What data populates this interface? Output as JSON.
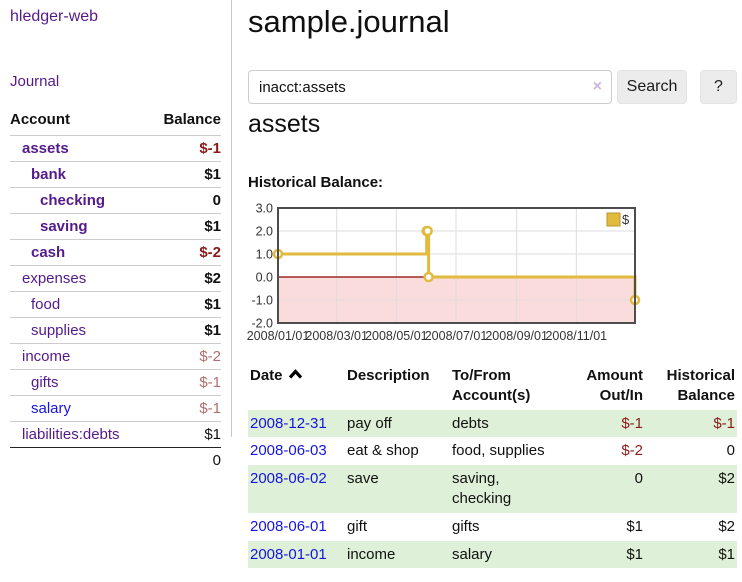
{
  "app": {
    "brand": "hledger-web",
    "nav": {
      "journal": "Journal"
    }
  },
  "sidebar": {
    "header": {
      "account": "Account",
      "balance": "Balance"
    },
    "accounts": [
      {
        "name": "assets",
        "balance": "$-1"
      },
      {
        "name": "bank",
        "balance": "$1"
      },
      {
        "name": "checking",
        "balance": "0"
      },
      {
        "name": "saving",
        "balance": "$1"
      },
      {
        "name": "cash",
        "balance": "$-2"
      },
      {
        "name": "expenses",
        "balance": "$2"
      },
      {
        "name": "food",
        "balance": "$1"
      },
      {
        "name": "supplies",
        "balance": "$1"
      },
      {
        "name": "income",
        "balance": "$-2"
      },
      {
        "name": "gifts",
        "balance": "$-1"
      },
      {
        "name": "salary",
        "balance": "$-1"
      },
      {
        "name": "liabilities:debts",
        "balance": "$1"
      }
    ],
    "total": "0"
  },
  "main": {
    "title": "sample.journal",
    "search": {
      "query": "inacct:assets",
      "clear": "×",
      "button": "Search",
      "help": "?"
    },
    "account_heading": "assets",
    "chart_label": "Historical Balance:"
  },
  "chart_data": {
    "type": "line",
    "title": "Historical Balance:",
    "step": "after",
    "series": [
      {
        "name": "$",
        "points": [
          {
            "date": "2008-01-01",
            "value": 1
          },
          {
            "date": "2008-06-01",
            "value": 2
          },
          {
            "date": "2008-06-02",
            "value": 2
          },
          {
            "date": "2008-06-03",
            "value": 0
          },
          {
            "date": "2008-12-31",
            "value": -1
          }
        ]
      }
    ],
    "x_range": [
      "2008-01-01",
      "2008-12-31"
    ],
    "ylim": [
      -2,
      3
    ],
    "yticks": [
      3,
      2,
      1,
      0,
      -1,
      -2
    ],
    "xticks": [
      "2008/01/01",
      "2008/03/01",
      "2008/05/01",
      "2008/07/01",
      "2008/09/01",
      "2008/11/01"
    ],
    "grid": true,
    "legend_position": "top-right",
    "legend_label": "$",
    "negative_region_shaded": true,
    "colors": {
      "line": "#e2ba3e",
      "marker_fill": "#ffffff",
      "fill_negative": "#fbdcdc",
      "zero_line": "#8b0000",
      "border": "#4d4d4d",
      "grid": "#dddddd",
      "tick_text": "#333333"
    }
  },
  "register": {
    "headers": {
      "date": "Date",
      "description": "Description",
      "accounts": "To/From Account(s)",
      "amount": "Amount Out/In",
      "balance": "Historical Balance"
    },
    "rows": [
      {
        "date": "2008-12-31",
        "description": "pay off",
        "accounts": "debts",
        "amount": "$-1",
        "balance": "$-1"
      },
      {
        "date": "2008-06-03",
        "description": "eat & shop",
        "accounts": "food, supplies",
        "amount": "$-2",
        "balance": "0"
      },
      {
        "date": "2008-06-02",
        "description": "save",
        "accounts": "saving, checking",
        "amount": "0",
        "balance": "$2"
      },
      {
        "date": "2008-06-01",
        "description": "gift",
        "accounts": "gifts",
        "amount": "$1",
        "balance": "$2"
      },
      {
        "date": "2008-01-01",
        "description": "income",
        "accounts": "salary",
        "amount": "$1",
        "balance": "$1"
      }
    ]
  },
  "colors": {
    "link_purple": "#551a8b",
    "link_blue": "#1515e0",
    "negative_strong": "#8b1a1a",
    "negative_muted": "#b36d6d",
    "row_stripe_green": "#dff0d8",
    "chart_gold": "#e2ba3e"
  }
}
